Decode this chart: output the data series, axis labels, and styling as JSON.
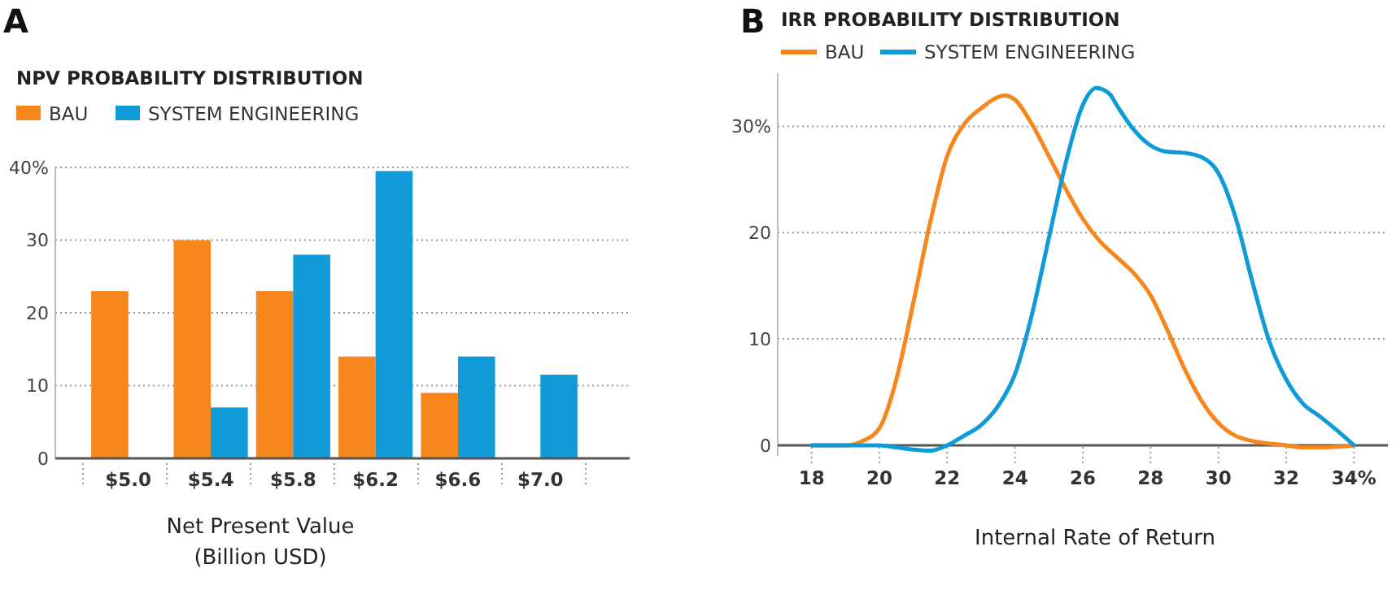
{
  "chart_data": [
    {
      "type": "bar",
      "title": "NPV PROBABILITY DISTRIBUTION",
      "annotations": [
        "A"
      ],
      "xlabel": "Net Present Value\n(Billion USD)",
      "categories": [
        "$5.0",
        "$5.4",
        "$5.8",
        "$6.2",
        "$6.6",
        "$7.0"
      ],
      "series": [
        {
          "name": "BAU",
          "color": "#f7861c",
          "values": [
            23,
            30,
            23,
            14,
            9,
            0
          ]
        },
        {
          "name": "SYSTEM ENGINEERING",
          "color": "#0f9bd7",
          "values": [
            0,
            7,
            28,
            39.5,
            14,
            11.5
          ]
        }
      ],
      "ylim": [
        0,
        40
      ],
      "yticks": [
        0,
        10,
        20,
        30,
        {
          "value": 40,
          "label": "40%"
        }
      ],
      "grid": "y",
      "legend": "top left"
    },
    {
      "type": "line",
      "title": "IRR PROBABILITY DISTRIBUTION",
      "annotations": [
        "B"
      ],
      "xlabel": "Internal Rate of Return",
      "series": [
        {
          "name": "BAU",
          "color": "#f7861c",
          "x": [
            18,
            19,
            19.5,
            20,
            20.5,
            21,
            21.5,
            22,
            22.5,
            23,
            23.7,
            24,
            24.5,
            25,
            25.5,
            26,
            26.5,
            27,
            27.5,
            28,
            28.5,
            29,
            29.5,
            30,
            30.5,
            31,
            32,
            32.5,
            33,
            34
          ],
          "values": [
            0,
            0,
            0.4,
            1.6,
            6.2,
            13.4,
            21,
            27.2,
            30.2,
            31.7,
            32.9,
            32.5,
            30.2,
            27.2,
            24.1,
            21.3,
            19.2,
            17.7,
            16.2,
            14.1,
            10.8,
            7.2,
            4.2,
            2.1,
            0.9,
            0.4,
            0,
            -0.2,
            -0.2,
            0
          ]
        },
        {
          "name": "SYSTEM ENGINEERING",
          "color": "#0f9bd7",
          "x": [
            18,
            19,
            20,
            20.5,
            21,
            21.5,
            22,
            22.5,
            23,
            23.5,
            24,
            24.5,
            25,
            25.5,
            26,
            26.4,
            26.8,
            27,
            27.5,
            28,
            28.5,
            29,
            29.5,
            30,
            30.5,
            31,
            31.5,
            32,
            32.5,
            33,
            33.5,
            34
          ],
          "values": [
            0,
            0,
            0,
            -0.2,
            -0.4,
            -0.5,
            0,
            0.9,
            1.9,
            3.7,
            6.7,
            12.3,
            19.5,
            26.6,
            32,
            33.6,
            33,
            32,
            29.7,
            28.2,
            27.6,
            27.5,
            27.1,
            25.6,
            21.5,
            15.4,
            9.8,
            6.2,
            3.9,
            2.7,
            1.4,
            0
          ]
        }
      ],
      "xlim": [
        17,
        35
      ],
      "xticks": [
        18,
        20,
        22,
        24,
        26,
        28,
        30,
        32,
        {
          "value": 34,
          "label": "34%"
        }
      ],
      "ylim": [
        -1,
        35
      ],
      "yticks": [
        0,
        10,
        20,
        {
          "value": 30,
          "label": "30%"
        }
      ],
      "grid": "y",
      "legend": "top left",
      "marker": "none",
      "line_style": "solid"
    }
  ]
}
